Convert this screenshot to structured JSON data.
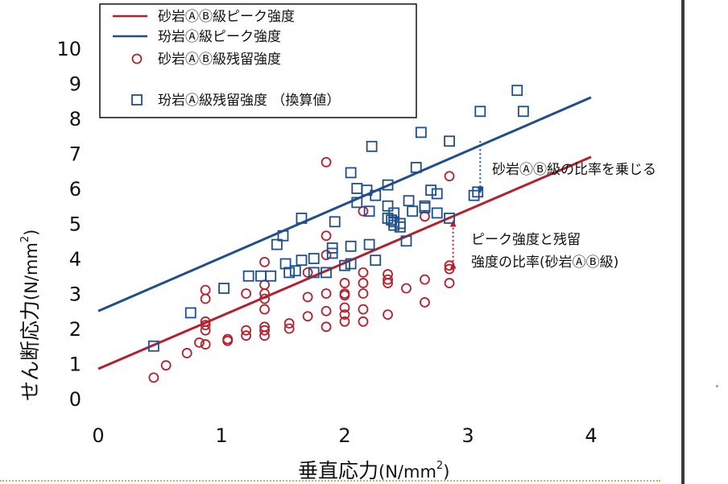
{
  "chart_data": {
    "type": "scatter",
    "title": "",
    "xlabel": "垂直応力(N/mm²)",
    "xlabel_main": "垂直応力",
    "xlabel_unit_base": "(N/mm",
    "xlabel_unit_sup": "2",
    "xlabel_unit_close": ")",
    "ylabel": "せん断応力(N/mm²)",
    "ylabel_main": "せん断応力",
    "ylabel_unit_base": "(N/mm",
    "ylabel_unit_sup": "2",
    "ylabel_unit_close": ")",
    "xlim": [
      0,
      4.4
    ],
    "ylim": [
      0,
      10.5
    ],
    "xticks": [
      0,
      1,
      2,
      3,
      4
    ],
    "yticks": [
      0,
      1,
      2,
      3,
      4,
      5,
      6,
      7,
      8,
      9,
      10
    ],
    "grid": false,
    "legend_position": "top-left",
    "lines": [
      {
        "name": "砂岩ⒶⒷ級ピーク強度",
        "color": "#b5202e",
        "points": [
          [
            0,
            0.85
          ],
          [
            4,
            6.9
          ]
        ]
      },
      {
        "name": "玢岩Ⓐ級ピーク強度",
        "color": "#1f4e8c",
        "points": [
          [
            0,
            2.5
          ],
          [
            4,
            8.6
          ]
        ]
      }
    ],
    "series": [
      {
        "name": "砂岩ⒶⒷ級残留強度",
        "marker": "circle",
        "color": "#b5202e",
        "points": [
          [
            0.45,
            0.6
          ],
          [
            0.55,
            0.95
          ],
          [
            0.72,
            1.3
          ],
          [
            0.82,
            1.6
          ],
          [
            0.87,
            3.1
          ],
          [
            0.87,
            2.85
          ],
          [
            0.87,
            2.2
          ],
          [
            0.87,
            2.1
          ],
          [
            0.87,
            1.95
          ],
          [
            0.87,
            1.55
          ],
          [
            1.05,
            1.65
          ],
          [
            1.05,
            1.7
          ],
          [
            1.2,
            3.0
          ],
          [
            1.2,
            1.95
          ],
          [
            1.2,
            1.8
          ],
          [
            1.35,
            3.9
          ],
          [
            1.35,
            3.25
          ],
          [
            1.35,
            3.0
          ],
          [
            1.35,
            2.85
          ],
          [
            1.35,
            2.55
          ],
          [
            1.35,
            2.05
          ],
          [
            1.35,
            1.95
          ],
          [
            1.35,
            1.8
          ],
          [
            1.55,
            2.15
          ],
          [
            1.55,
            2.0
          ],
          [
            1.7,
            3.6
          ],
          [
            1.7,
            2.9
          ],
          [
            1.7,
            2.35
          ],
          [
            1.85,
            6.75
          ],
          [
            1.85,
            4.65
          ],
          [
            1.85,
            4.1
          ],
          [
            1.85,
            3.0
          ],
          [
            1.85,
            2.5
          ],
          [
            1.85,
            2.05
          ],
          [
            2.0,
            3.3
          ],
          [
            2.0,
            3.0
          ],
          [
            2.0,
            2.95
          ],
          [
            2.0,
            2.6
          ],
          [
            2.0,
            2.4
          ],
          [
            2.0,
            2.2
          ],
          [
            2.15,
            5.35
          ],
          [
            2.15,
            3.6
          ],
          [
            2.15,
            3.3
          ],
          [
            2.15,
            3.0
          ],
          [
            2.15,
            2.55
          ],
          [
            2.15,
            2.2
          ],
          [
            2.35,
            3.55
          ],
          [
            2.35,
            3.4
          ],
          [
            2.35,
            3.3
          ],
          [
            2.35,
            2.4
          ],
          [
            2.5,
            3.15
          ],
          [
            2.65,
            5.2
          ],
          [
            2.65,
            3.4
          ],
          [
            2.65,
            2.75
          ],
          [
            2.85,
            6.35
          ],
          [
            2.85,
            3.8
          ],
          [
            2.85,
            3.7
          ],
          [
            2.85,
            3.3
          ]
        ]
      },
      {
        "name": "玢岩Ⓐ級残留強度 （換算値）",
        "marker": "square",
        "color": "#1f4e8c",
        "points": [
          [
            0.45,
            1.5
          ],
          [
            0.75,
            2.45
          ],
          [
            1.02,
            3.15
          ],
          [
            1.22,
            3.5
          ],
          [
            1.32,
            3.5
          ],
          [
            1.4,
            3.5
          ],
          [
            1.45,
            4.4
          ],
          [
            1.5,
            4.65
          ],
          [
            1.52,
            3.85
          ],
          [
            1.55,
            3.6
          ],
          [
            1.6,
            3.65
          ],
          [
            1.65,
            3.95
          ],
          [
            1.65,
            5.15
          ],
          [
            1.75,
            4.0
          ],
          [
            1.75,
            3.6
          ],
          [
            1.85,
            3.6
          ],
          [
            1.9,
            4.15
          ],
          [
            1.9,
            4.3
          ],
          [
            1.92,
            5.05
          ],
          [
            2.0,
            3.8
          ],
          [
            2.05,
            4.35
          ],
          [
            2.05,
            3.85
          ],
          [
            2.05,
            6.45
          ],
          [
            2.1,
            5.6
          ],
          [
            2.1,
            6.0
          ],
          [
            2.18,
            5.95
          ],
          [
            2.2,
            4.4
          ],
          [
            2.2,
            5.35
          ],
          [
            2.22,
            7.2
          ],
          [
            2.25,
            3.95
          ],
          [
            2.25,
            5.8
          ],
          [
            2.35,
            6.1
          ],
          [
            2.35,
            5.5
          ],
          [
            2.35,
            5.15
          ],
          [
            2.38,
            5.1
          ],
          [
            2.4,
            5.05
          ],
          [
            2.4,
            4.95
          ],
          [
            2.4,
            5.3
          ],
          [
            2.45,
            4.9
          ],
          [
            2.45,
            5.0
          ],
          [
            2.5,
            4.5
          ],
          [
            2.52,
            5.65
          ],
          [
            2.55,
            5.35
          ],
          [
            2.58,
            6.6
          ],
          [
            2.62,
            7.6
          ],
          [
            2.65,
            5.5
          ],
          [
            2.65,
            5.45
          ],
          [
            2.7,
            5.95
          ],
          [
            2.75,
            5.85
          ],
          [
            2.75,
            5.3
          ],
          [
            2.85,
            7.35
          ],
          [
            2.85,
            5.15
          ],
          [
            3.05,
            5.8
          ],
          [
            3.08,
            5.9
          ],
          [
            3.1,
            8.2
          ],
          [
            3.4,
            8.8
          ],
          [
            3.45,
            8.2
          ]
        ]
      }
    ],
    "annotations": [
      {
        "text": "砂岩ⒶⒷ級の比率を乗じる",
        "arrow": "down",
        "arrow_color": "#1f4e8c",
        "arrow_x": 3.1,
        "arrow_from": 7.35,
        "arrow_to": 5.95
      },
      {
        "text_lines": [
          "ピーク強度と残留",
          "強度の比率(砂岩ⒶⒷ級)"
        ],
        "arrow": "both",
        "arrow_color": "#b5202e",
        "arrow_x": 2.88,
        "arrow_from": 3.8,
        "arrow_to": 5.0
      }
    ]
  }
}
